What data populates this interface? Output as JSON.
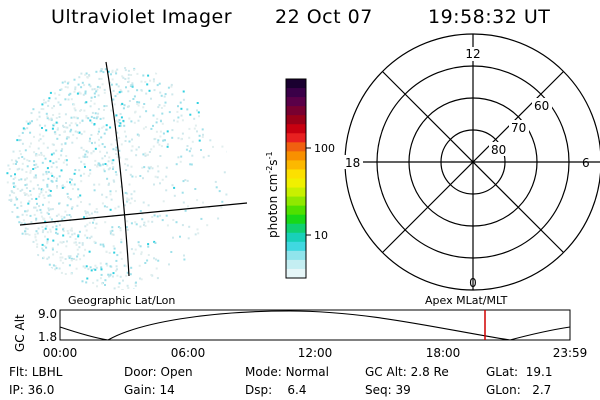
{
  "header": {
    "title": "Ultraviolet Imager",
    "date": "22 Oct 07",
    "time": "19:58:32 UT"
  },
  "colorbar": {
    "label_main": "photon cm",
    "label_exp1": "-2",
    "label_mid": "s",
    "label_exp2": "-1",
    "ticks": [
      "100",
      "10"
    ],
    "colors": [
      "#1a0030",
      "#3a0048",
      "#5a0048",
      "#780030",
      "#9a0018",
      "#c80010",
      "#e82020",
      "#f06010",
      "#f89000",
      "#fcb800",
      "#fce000",
      "#f0f000",
      "#c8f000",
      "#90e800",
      "#50e000",
      "#18d818",
      "#10d070",
      "#18d0b8",
      "#40d8e0",
      "#90e4ec",
      "#c4eef2",
      "#e6f6f8"
    ]
  },
  "polar_plot": {
    "hour_labels": [
      "12",
      "18",
      "6",
      "0"
    ],
    "lat_labels": [
      "60",
      "70",
      "80"
    ]
  },
  "timeline": {
    "left_title": "Geographic Lat/Lon",
    "right_title": "Apex MLat/MLT",
    "y_axis_label": "GC Alt",
    "y_ticks": [
      "9.0",
      "1.8"
    ],
    "x_ticks": [
      "00:00",
      "06:00",
      "12:00",
      "18:00",
      "23:59"
    ],
    "marker_color": "#d00000"
  },
  "info": {
    "flt_label": "Flt:",
    "flt_value": "LBHL",
    "ip_label": "IP:",
    "ip_value": "36.0",
    "door_label": "Door:",
    "door_value": "Open",
    "gain_label": "Gain:",
    "gain_value": "14",
    "mode_label": "Mode:",
    "mode_value": "Normal",
    "dsp_label": "Dsp:",
    "dsp_value": "6.4",
    "gcalt_label": "GC Alt:",
    "gcalt_value": "2.8 Re",
    "seq_label": "Seq:",
    "seq_value": "39",
    "glat_label": "GLat:",
    "glat_value": "19.1",
    "glon_label": "GLon:",
    "glon_value": "2.7"
  }
}
